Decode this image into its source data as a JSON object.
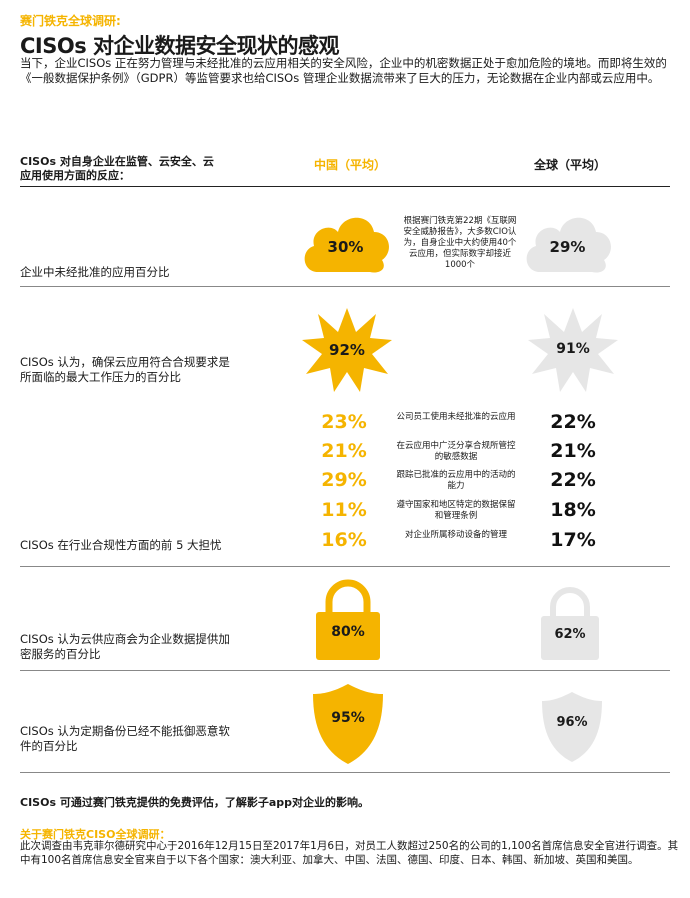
{
  "header": {
    "kicker": "赛门铁克全球调研:",
    "title": "CISOs 对企业数据安全现状的感观",
    "intro": "当下，企业CISOs 正在努力管理与未经批准的云应用相关的安全风险，企业中的机密数据正处于愈加危险的境地。而即将生效的《一般数据保护条例》（GDPR）等监管要求也给CISOs 管理企业数据流带来了巨大的压力，无论数据在企业内部或云应用中。"
  },
  "table_header": {
    "left": "CISOs 对自身企业在监管、云安全、云应用使用方面的反应：",
    "china": "中国（平均）",
    "global": "全球（平均）"
  },
  "rows": {
    "unapproved": {
      "label": "企业中未经批准的应用百分比",
      "china": "30%",
      "global": "29%",
      "note": "根据赛门铁克第22期《互联网安全威胁报告》，大多数CIO认为，自身企业中大约使用40个云应用，但实际数字却接近1000个"
    },
    "pressure": {
      "label": "CISOs 认为，确保云应用符合合规要求是所面临的最大工作压力的百分比",
      "china": "92%",
      "global": "91%"
    },
    "concerns": {
      "label": "CISOs 在行业合规性方面的前 5 大担忧",
      "items": [
        {
          "china": "23%",
          "text": "公司员工使用未经批准的云应用",
          "global": "22%"
        },
        {
          "china": "21%",
          "text": "在云应用中广泛分享合规所管控的敏感数据",
          "global": "21%"
        },
        {
          "china": "29%",
          "text": "跟踪已批准的云应用中的活动的能力",
          "global": "22%"
        },
        {
          "china": "11%",
          "text": "遵守国家和地区特定的数据保留和管理条例",
          "global": "18%"
        },
        {
          "china": "16%",
          "text": "对企业所属移动设备的管理",
          "global": "17%"
        }
      ]
    },
    "encryption": {
      "label": "CISOs 认为云供应商会为企业数据提供加密服务的百分比",
      "china": "80%",
      "global": "62%"
    },
    "backup": {
      "label": "CISOs 认为定期备份已经不能抵御恶意软件的百分比",
      "china": "95%",
      "global": "96%"
    }
  },
  "footer": {
    "cta": "CISOs 可通过赛门铁克提供的免费评估，了解影子app对企业的影响。",
    "about_title": "关于赛门铁克CISO全球调研：",
    "about_text": "此次调查由韦克菲尔德研究中心于2016年12月15日至2017年1月6日，对员工人数超过250名的公司的1,100名首席信息安全官进行调查。其中有100名首席信息安全官来自于以下各个国家：澳大利亚、加拿大、中国、法国、德国、印度、日本、韩国、新加坡、英国和美国。"
  },
  "colors": {
    "accent": "#f5b400",
    "grey": "#e6e6e6",
    "text": "#1a1a1a"
  }
}
